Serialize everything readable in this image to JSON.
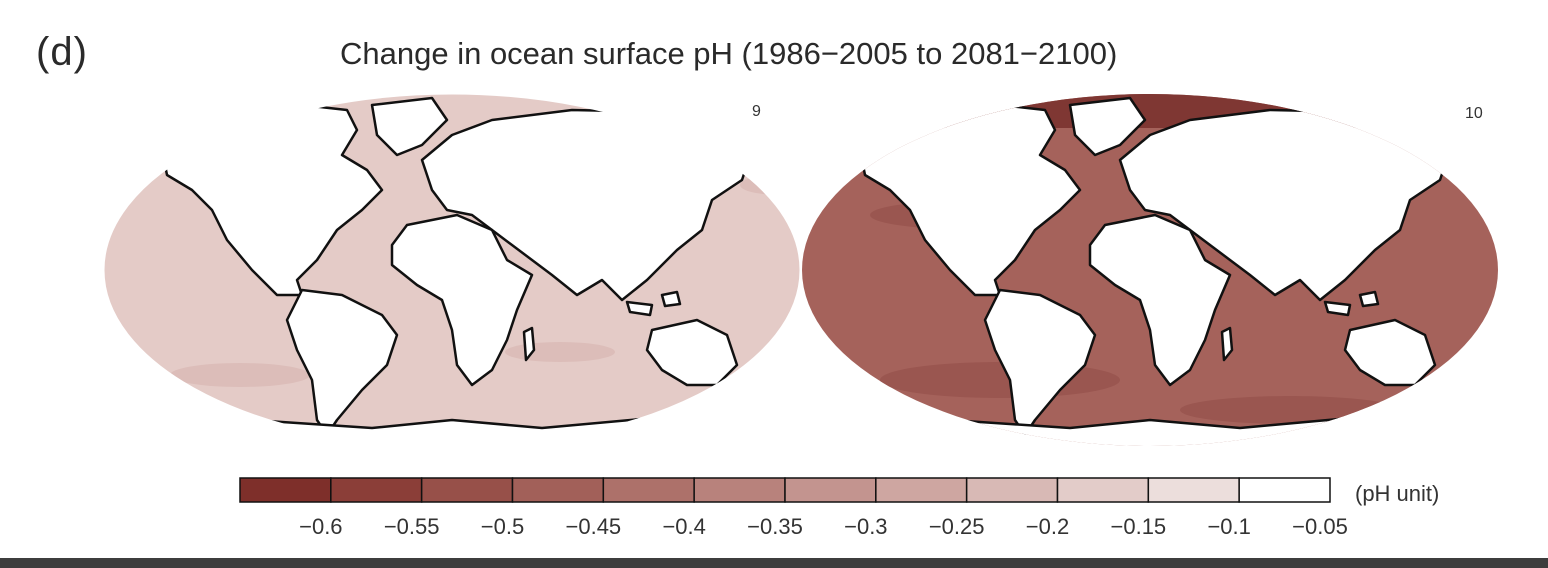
{
  "panel_label": "(d)",
  "title": "Change in ocean surface pH (1986−2005 to 2081−2100)",
  "maps": [
    {
      "model_count": "9",
      "ocean_color": "#e4cbc7",
      "band_color": "#dcbdb9"
    },
    {
      "model_count": "10",
      "ocean_color": "#a5625b",
      "band_color": "#9a5650",
      "arctic_color": "#7f3733"
    }
  ],
  "colorbar": {
    "unit": "(pH unit)",
    "colors": [
      "#7e2f2a",
      "#8b3e38",
      "#975049",
      "#a26059",
      "#ad716a",
      "#b8827c",
      "#c3948f",
      "#cea6a1",
      "#d8b9b5",
      "#e3ccc9",
      "#ecdedc",
      "#ffffff"
    ],
    "ticks": [
      "−0.6",
      "−0.55",
      "−0.5",
      "−0.45",
      "−0.4",
      "−0.35",
      "−0.3",
      "−0.25",
      "−0.2",
      "−0.15",
      "−0.1",
      "−0.05"
    ]
  }
}
